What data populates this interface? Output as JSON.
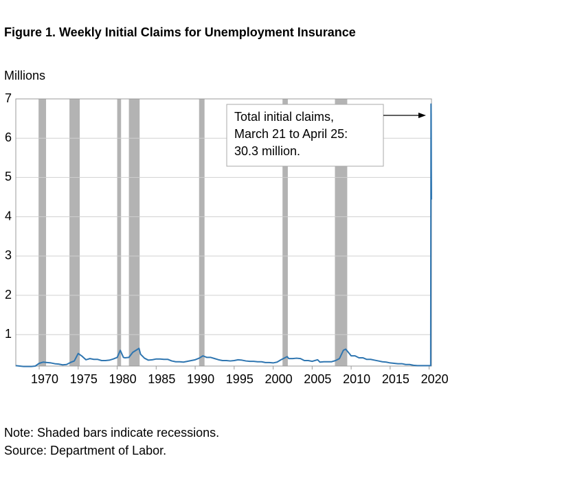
{
  "chart_data": {
    "type": "line",
    "title": "Figure 1. Weekly Initial Claims for Unemployment Insurance",
    "y_label": "Millions",
    "annotation": [
      "Total initial claims,",
      "March 21 to April 25:",
      "30.3 million."
    ],
    "notes": [
      "Note: Shaded bars indicate recessions.",
      "Source: Department of Labor."
    ],
    "color": "#2e75b0",
    "recession_color": "#b3b3b3",
    "grid": true,
    "xlim": [
      1967,
      2020.3
    ],
    "ylim": [
      0.2,
      7
    ],
    "xticks": [
      1970,
      1975,
      1980,
      1985,
      1990,
      1995,
      2000,
      2005,
      2010,
      2015,
      2020
    ],
    "yticks": [
      1,
      2,
      3,
      4,
      5,
      6,
      7
    ],
    "recessions": [
      [
        1969.92,
        1970.88
      ],
      [
        1973.88,
        1975.2
      ],
      [
        1980.0,
        1980.5
      ],
      [
        1981.5,
        1982.88
      ],
      [
        1990.5,
        1991.2
      ],
      [
        2001.2,
        2001.88
      ],
      [
        2007.92,
        2009.5
      ]
    ],
    "x": [
      1967,
      1967.5,
      1968,
      1968.5,
      1969,
      1969.5,
      1970,
      1970.5,
      1971,
      1971.5,
      1972,
      1972.5,
      1973,
      1973.5,
      1974,
      1974.5,
      1975,
      1975.5,
      1976,
      1976.5,
      1977,
      1977.5,
      1978,
      1978.5,
      1979,
      1979.5,
      1980,
      1980.4,
      1980.8,
      1981,
      1981.5,
      1982,
      1982.8,
      1983,
      1983.5,
      1984,
      1984.5,
      1985,
      1985.5,
      1986,
      1986.5,
      1987,
      1987.5,
      1988,
      1988.5,
      1989,
      1989.5,
      1990,
      1990.5,
      1991,
      1991.5,
      1992,
      1992.5,
      1993,
      1993.5,
      1994,
      1994.5,
      1995,
      1995.5,
      1996,
      1996.5,
      1997,
      1997.5,
      1998,
      1998.5,
      1999,
      1999.5,
      2000,
      2000.5,
      2001,
      2001.5,
      2001.8,
      2002,
      2002.5,
      2003,
      2003.5,
      2004,
      2004.5,
      2005,
      2005.7,
      2006,
      2006.5,
      2007,
      2007.5,
      2008,
      2008.5,
      2009,
      2009.3,
      2009.8,
      2010,
      2010.5,
      2011,
      2011.5,
      2012,
      2012.5,
      2013,
      2013.5,
      2014,
      2014.5,
      2015,
      2015.5,
      2016,
      2016.5,
      2017,
      2017.5,
      2018,
      2018.5,
      2019,
      2019.5,
      2020,
      2020.2,
      2020.22,
      2020.24,
      2020.26,
      2020.28,
      2020.3
    ],
    "values": [
      0.21,
      0.2,
      0.19,
      0.19,
      0.19,
      0.2,
      0.27,
      0.3,
      0.29,
      0.28,
      0.26,
      0.25,
      0.23,
      0.24,
      0.29,
      0.33,
      0.52,
      0.45,
      0.36,
      0.39,
      0.37,
      0.37,
      0.34,
      0.34,
      0.35,
      0.38,
      0.42,
      0.6,
      0.42,
      0.41,
      0.42,
      0.55,
      0.65,
      0.5,
      0.4,
      0.35,
      0.36,
      0.38,
      0.38,
      0.37,
      0.37,
      0.33,
      0.31,
      0.31,
      0.3,
      0.32,
      0.34,
      0.36,
      0.4,
      0.46,
      0.42,
      0.42,
      0.39,
      0.36,
      0.34,
      0.34,
      0.33,
      0.34,
      0.36,
      0.35,
      0.33,
      0.32,
      0.32,
      0.31,
      0.31,
      0.29,
      0.29,
      0.28,
      0.3,
      0.36,
      0.41,
      0.44,
      0.39,
      0.39,
      0.4,
      0.39,
      0.34,
      0.34,
      0.32,
      0.36,
      0.3,
      0.31,
      0.31,
      0.31,
      0.34,
      0.39,
      0.6,
      0.63,
      0.51,
      0.46,
      0.46,
      0.41,
      0.41,
      0.37,
      0.37,
      0.35,
      0.33,
      0.31,
      0.3,
      0.28,
      0.27,
      0.26,
      0.26,
      0.24,
      0.24,
      0.22,
      0.21,
      0.21,
      0.21,
      0.21,
      0.21,
      3.3,
      6.87,
      6.6,
      5.2,
      4.44
    ]
  }
}
